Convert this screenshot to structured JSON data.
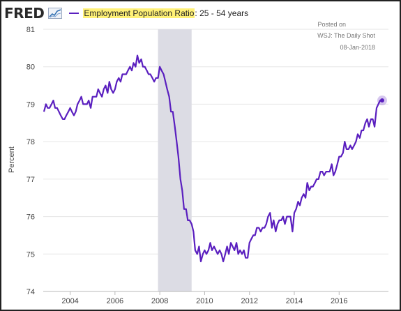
{
  "header": {
    "logo": "FRED",
    "series_title_highlight": "Employment Population Ratio",
    "series_title_rest": ": 25 - 54 years"
  },
  "annotation": {
    "line1": "Posted on",
    "line2": "WSJ: The Daily Shot",
    "line3": "08-Jan-2018"
  },
  "colors": {
    "series": "#5a1fbf",
    "recession": "#dcdce4",
    "grid": "#e6e6e6",
    "highlight": "#fff176"
  },
  "chart_data": {
    "type": "line",
    "title": "Employment Population Ratio: 25 - 54 years",
    "xlabel": "",
    "ylabel": "Percent",
    "ylim": [
      74,
      81
    ],
    "xlim": [
      2002.8,
      2018.2
    ],
    "yticks": [
      "74",
      "75",
      "76",
      "77",
      "78",
      "79",
      "80",
      "81"
    ],
    "xticks": [
      "2004",
      "2006",
      "2008",
      "2010",
      "2012",
      "2014",
      "2016"
    ],
    "recession": [
      2007.92,
      2009.42
    ],
    "grid": true,
    "series": [
      {
        "name": "Employment Population Ratio: 25 - 54 years",
        "x": [
          2002.83,
          2002.92,
          2003.0,
          2003.08,
          2003.17,
          2003.25,
          2003.33,
          2003.42,
          2003.5,
          2003.58,
          2003.67,
          2003.75,
          2003.83,
          2003.92,
          2004.0,
          2004.08,
          2004.17,
          2004.25,
          2004.33,
          2004.42,
          2004.5,
          2004.58,
          2004.67,
          2004.75,
          2004.83,
          2004.92,
          2005.0,
          2005.08,
          2005.17,
          2005.25,
          2005.33,
          2005.42,
          2005.5,
          2005.58,
          2005.67,
          2005.75,
          2005.83,
          2005.92,
          2006.0,
          2006.08,
          2006.17,
          2006.25,
          2006.33,
          2006.42,
          2006.5,
          2006.58,
          2006.67,
          2006.75,
          2006.83,
          2006.92,
          2007.0,
          2007.08,
          2007.17,
          2007.25,
          2007.33,
          2007.42,
          2007.5,
          2007.58,
          2007.67,
          2007.75,
          2007.83,
          2007.92,
          2008.0,
          2008.08,
          2008.17,
          2008.25,
          2008.33,
          2008.42,
          2008.5,
          2008.58,
          2008.67,
          2008.75,
          2008.83,
          2008.92,
          2009.0,
          2009.08,
          2009.17,
          2009.25,
          2009.33,
          2009.42,
          2009.5,
          2009.58,
          2009.67,
          2009.75,
          2009.83,
          2009.92,
          2010.0,
          2010.08,
          2010.17,
          2010.25,
          2010.33,
          2010.42,
          2010.5,
          2010.58,
          2010.67,
          2010.75,
          2010.83,
          2010.92,
          2011.0,
          2011.08,
          2011.17,
          2011.25,
          2011.33,
          2011.42,
          2011.5,
          2011.58,
          2011.67,
          2011.75,
          2011.83,
          2011.92,
          2012.0,
          2012.08,
          2012.17,
          2012.25,
          2012.33,
          2012.42,
          2012.5,
          2012.58,
          2012.67,
          2012.75,
          2012.83,
          2012.92,
          2013.0,
          2013.08,
          2013.17,
          2013.25,
          2013.33,
          2013.42,
          2013.5,
          2013.58,
          2013.67,
          2013.75,
          2013.83,
          2013.92,
          2014.0,
          2014.08,
          2014.17,
          2014.25,
          2014.33,
          2014.42,
          2014.5,
          2014.58,
          2014.67,
          2014.75,
          2014.83,
          2014.92,
          2015.0,
          2015.08,
          2015.17,
          2015.25,
          2015.33,
          2015.42,
          2015.5,
          2015.58,
          2015.67,
          2015.75,
          2015.83,
          2015.92,
          2016.0,
          2016.08,
          2016.17,
          2016.25,
          2016.33,
          2016.42,
          2016.5,
          2016.58,
          2016.67,
          2016.75,
          2016.83,
          2016.92,
          2017.0,
          2017.08,
          2017.17,
          2017.25,
          2017.33,
          2017.42,
          2017.5,
          2017.58,
          2017.67,
          2017.75,
          2017.83,
          2017.92
        ],
        "values": [
          78.8,
          79.0,
          78.9,
          78.9,
          79.0,
          79.1,
          78.9,
          78.9,
          78.8,
          78.7,
          78.6,
          78.6,
          78.7,
          78.8,
          78.9,
          78.8,
          78.7,
          78.8,
          79.0,
          79.1,
          79.2,
          79.0,
          79.0,
          79.0,
          79.1,
          78.9,
          79.2,
          79.2,
          79.2,
          79.4,
          79.3,
          79.2,
          79.4,
          79.5,
          79.3,
          79.6,
          79.4,
          79.3,
          79.4,
          79.6,
          79.7,
          79.6,
          79.8,
          79.8,
          79.8,
          79.9,
          80.0,
          79.9,
          80.1,
          80.0,
          80.3,
          80.1,
          80.2,
          80.0,
          80.0,
          79.9,
          79.8,
          79.8,
          79.7,
          79.6,
          79.7,
          79.7,
          80.0,
          79.9,
          79.8,
          79.6,
          79.4,
          79.2,
          78.8,
          78.8,
          78.4,
          78.0,
          77.6,
          77.0,
          76.7,
          76.2,
          76.2,
          75.9,
          75.9,
          75.8,
          75.6,
          75.1,
          75.0,
          75.2,
          74.8,
          75.0,
          75.1,
          75.0,
          75.1,
          75.3,
          75.1,
          75.2,
          75.1,
          75.0,
          75.1,
          75.0,
          74.8,
          75.0,
          75.2,
          75.0,
          75.3,
          75.2,
          75.1,
          75.3,
          75.0,
          75.1,
          75.0,
          75.1,
          74.9,
          74.9,
          75.3,
          75.4,
          75.5,
          75.5,
          75.7,
          75.7,
          75.6,
          75.7,
          75.7,
          75.8,
          76.0,
          76.1,
          75.7,
          75.9,
          75.6,
          75.8,
          75.9,
          75.9,
          76.0,
          75.8,
          76.0,
          76.0,
          76.0,
          75.6,
          76.1,
          76.2,
          76.4,
          76.3,
          76.5,
          76.6,
          76.5,
          76.9,
          76.7,
          76.8,
          76.8,
          76.9,
          77.0,
          77.0,
          77.2,
          77.2,
          77.1,
          77.2,
          77.2,
          77.2,
          77.4,
          77.1,
          77.2,
          77.4,
          77.6,
          77.6,
          77.7,
          78.0,
          77.8,
          77.8,
          77.9,
          77.8,
          77.9,
          78.0,
          78.2,
          78.1,
          78.3,
          78.3,
          78.5,
          78.6,
          78.4,
          78.6,
          78.6,
          78.4,
          78.9,
          79.0,
          79.1,
          79.1
        ]
      }
    ]
  }
}
